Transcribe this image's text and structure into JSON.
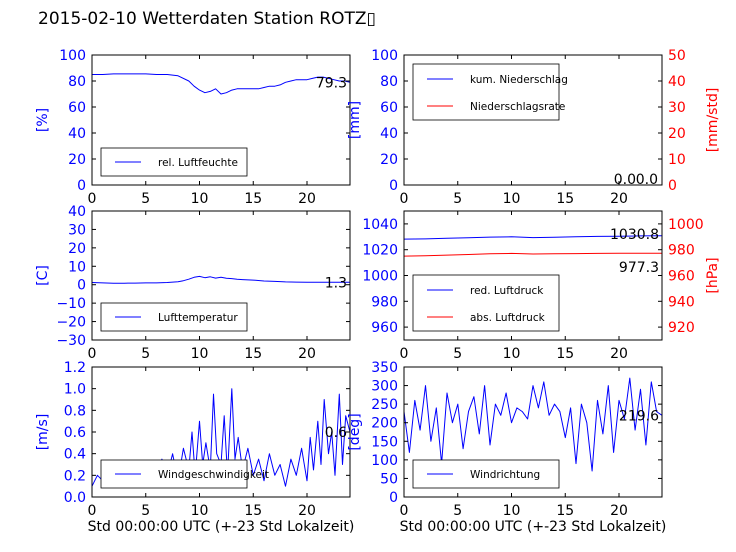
{
  "title": "2015-02-10 Wetterdaten Station ROTZ",
  "title_glyph": "▯",
  "colors": {
    "axis_left": "#0000ff",
    "axis_right": "#ff0000",
    "series_blue": "#0000ff",
    "series_red": "#ff0000",
    "text": "#000000"
  },
  "chart_data": [
    {
      "id": "humidity",
      "type": "line",
      "xlim": [
        0,
        24
      ],
      "x_ticks": [
        "0",
        "5",
        "10",
        "15",
        "20"
      ],
      "ylim": [
        0,
        100
      ],
      "y_ticks": [
        "0",
        "20",
        "40",
        "60",
        "80",
        "100"
      ],
      "ylabel": "[%]",
      "legend_position": "lower-left",
      "current_value": "79.3",
      "series": [
        {
          "name": "rel. Luftfeuchte",
          "color": "#0000ff",
          "axis": "left",
          "x": [
            0,
            1,
            2,
            3,
            4,
            5,
            6,
            7,
            8,
            9,
            9.5,
            10,
            10.5,
            11,
            11.5,
            12,
            12.5,
            13,
            13.5,
            14,
            14.5,
            15,
            15.5,
            16,
            16.5,
            17,
            17.5,
            18,
            18.5,
            19,
            19.5,
            20,
            20.5,
            21,
            21.5,
            22,
            22.5,
            23,
            23.5,
            24
          ],
          "y": [
            85,
            85,
            85.5,
            85.5,
            85.5,
            85.5,
            85,
            85,
            84,
            80,
            76,
            73,
            71,
            72,
            74,
            70,
            71,
            73,
            74,
            74,
            74,
            74,
            74,
            75,
            76,
            76,
            77,
            79,
            80,
            81,
            81,
            81,
            82,
            83,
            83,
            82,
            81,
            80,
            80,
            79
          ]
        }
      ]
    },
    {
      "id": "precipitation",
      "type": "line",
      "xlim": [
        0,
        24
      ],
      "x_ticks": [
        "0",
        "5",
        "10",
        "15",
        "20"
      ],
      "ylim": [
        0,
        100
      ],
      "y_ticks": [
        "0",
        "20",
        "40",
        "60",
        "80",
        "100"
      ],
      "ylabel": "[mm]",
      "y2lim": [
        0,
        50
      ],
      "y2_ticks": [
        "0",
        "10",
        "20",
        "30",
        "40",
        "50"
      ],
      "y2label": "[mm/std]",
      "legend_position": "upper-left",
      "current_values": [
        "0.0",
        "0.0"
      ],
      "series": [
        {
          "name": "kum. Niederschlag",
          "color": "#0000ff",
          "axis": "left",
          "x": [
            0,
            24
          ],
          "y": [
            0,
            0
          ]
        },
        {
          "name": "Niederschlagsrate",
          "color": "#ff0000",
          "axis": "right",
          "x": [
            0,
            24
          ],
          "y": [
            0,
            0
          ]
        }
      ]
    },
    {
      "id": "temperature",
      "type": "line",
      "xlim": [
        0,
        24
      ],
      "x_ticks": [
        "0",
        "5",
        "10",
        "15",
        "20"
      ],
      "ylim": [
        -30,
        40
      ],
      "y_ticks": [
        "−30",
        "−20",
        "−10",
        "0",
        "10",
        "20",
        "30",
        "40"
      ],
      "ylabel": "[C]",
      "legend_position": "lower-left",
      "current_value": "1.3",
      "series": [
        {
          "name": "Lufttemperatur",
          "color": "#0000ff",
          "axis": "left",
          "x": [
            0,
            1,
            2,
            3,
            4,
            5,
            6,
            7,
            8,
            8.5,
            9,
            9.5,
            10,
            10.5,
            11,
            11.5,
            12,
            12.5,
            13,
            13.5,
            14,
            14.5,
            15,
            16,
            17,
            18,
            19,
            20,
            21,
            22,
            23,
            24
          ],
          "y": [
            1.2,
            1.0,
            0.8,
            0.8,
            0.9,
            1.0,
            1.0,
            1.2,
            1.6,
            2.2,
            3.0,
            4.0,
            4.5,
            3.8,
            4.3,
            3.6,
            4.0,
            3.5,
            3.3,
            3.0,
            2.8,
            2.6,
            2.5,
            2.0,
            1.8,
            1.5,
            1.4,
            1.3,
            1.3,
            1.3,
            1.3,
            1.3
          ]
        }
      ]
    },
    {
      "id": "pressure",
      "type": "line",
      "xlim": [
        0,
        24
      ],
      "x_ticks": [
        "0",
        "5",
        "10",
        "15",
        "20"
      ],
      "ylim": [
        950,
        1050
      ],
      "y_ticks": [
        "960",
        "980",
        "1000",
        "1020",
        "1040"
      ],
      "y2lim": [
        910,
        1010
      ],
      "y2_ticks": [
        "920",
        "940",
        "960",
        "980",
        "1000"
      ],
      "y2label": "[hPa]",
      "legend_position": "lower-left",
      "current_values": [
        "1030.8",
        "977.3"
      ],
      "series": [
        {
          "name": "red. Luftdruck",
          "color": "#0000ff",
          "axis": "left",
          "x": [
            0,
            2,
            4,
            6,
            8,
            10,
            12,
            14,
            16,
            18,
            20,
            22,
            24
          ],
          "y": [
            1028.2,
            1028.4,
            1028.8,
            1029.3,
            1029.8,
            1030.0,
            1029.4,
            1029.7,
            1030.0,
            1030.3,
            1030.5,
            1030.7,
            1030.8
          ]
        },
        {
          "name": "abs. Luftdruck",
          "color": "#ff0000",
          "axis": "right",
          "x": [
            0,
            2,
            4,
            6,
            8,
            10,
            12,
            14,
            16,
            18,
            20,
            22,
            24
          ],
          "y": [
            975.0,
            975.3,
            975.8,
            976.3,
            976.8,
            977.1,
            976.7,
            976.8,
            977.0,
            977.1,
            977.2,
            977.3,
            977.3
          ]
        }
      ]
    },
    {
      "id": "windspeed",
      "type": "line",
      "xlim": [
        0,
        24
      ],
      "x_ticks": [
        "0",
        "5",
        "10",
        "15",
        "20"
      ],
      "ylim": [
        0,
        1.2
      ],
      "y_ticks": [
        "0.0",
        "0.2",
        "0.4",
        "0.6",
        "0.8",
        "1.0",
        "1.2"
      ],
      "ylabel": "[m/s]",
      "xlabel": "Std 00:00:00 UTC (+-23 Std Lokalzeit)",
      "legend_position": "lower-left",
      "current_value": "0.6",
      "series": [
        {
          "name": "Windgeschwindigkeit",
          "color": "#0000ff",
          "axis": "left",
          "x": [
            0,
            0.5,
            1,
            1.5,
            2,
            2.5,
            3,
            3.5,
            4,
            4.5,
            5,
            5.5,
            6,
            6.5,
            7,
            7.5,
            8,
            8.5,
            9,
            9.3,
            9.6,
            10,
            10.3,
            10.6,
            11,
            11.3,
            11.6,
            12,
            12.3,
            12.6,
            13,
            13.3,
            13.6,
            14,
            14.5,
            15,
            15.5,
            16,
            16.5,
            17,
            17.5,
            18,
            18.5,
            19,
            19.5,
            20,
            20.3,
            20.6,
            21,
            21.3,
            21.6,
            22,
            22.3,
            22.6,
            23,
            23.3,
            23.6,
            24
          ],
          "y": [
            0.1,
            0.2,
            0.15,
            0.25,
            0.12,
            0.3,
            0.15,
            0.28,
            0.1,
            0.3,
            0.18,
            0.32,
            0.12,
            0.35,
            0.2,
            0.4,
            0.15,
            0.45,
            0.25,
            0.6,
            0.2,
            0.7,
            0.3,
            0.5,
            0.25,
            0.95,
            0.4,
            0.3,
            0.75,
            0.2,
            1.0,
            0.35,
            0.55,
            0.25,
            0.45,
            0.2,
            0.35,
            0.15,
            0.4,
            0.2,
            0.3,
            0.1,
            0.35,
            0.2,
            0.45,
            0.15,
            0.55,
            0.25,
            0.7,
            0.3,
            0.9,
            0.4,
            0.6,
            0.2,
            0.95,
            0.3,
            0.75,
            0.6
          ]
        }
      ]
    },
    {
      "id": "winddirection",
      "type": "line",
      "xlim": [
        0,
        24
      ],
      "x_ticks": [
        "0",
        "5",
        "10",
        "15",
        "20"
      ],
      "ylim": [
        0,
        350
      ],
      "y_ticks": [
        "0",
        "50",
        "100",
        "150",
        "200",
        "250",
        "300",
        "350"
      ],
      "ylabel": "[deg]",
      "xlabel": "Std 00:00:00 UTC (+-23 Std Lokalzeit)",
      "legend_position": "lower-left",
      "current_value": "219.6",
      "series": [
        {
          "name": "Windrichtung",
          "color": "#0000ff",
          "axis": "left",
          "x": [
            0,
            0.5,
            1,
            1.5,
            2,
            2.5,
            3,
            3.5,
            4,
            4.5,
            5,
            5.5,
            6,
            6.5,
            7,
            7.5,
            8,
            8.5,
            9,
            9.5,
            10,
            10.5,
            11,
            11.5,
            12,
            12.5,
            13,
            13.5,
            14,
            14.5,
            15,
            15.5,
            16,
            16.5,
            17,
            17.5,
            18,
            18.5,
            19,
            19.5,
            20,
            20.5,
            21,
            21.5,
            22,
            22.5,
            23,
            23.5,
            24
          ],
          "y": [
            230,
            120,
            260,
            180,
            300,
            150,
            240,
            90,
            280,
            200,
            250,
            130,
            230,
            270,
            170,
            300,
            140,
            250,
            220,
            280,
            200,
            240,
            230,
            210,
            300,
            240,
            310,
            220,
            250,
            230,
            160,
            240,
            90,
            250,
            200,
            70,
            260,
            170,
            300,
            120,
            260,
            210,
            320,
            180,
            290,
            140,
            310,
            230,
            220
          ]
        }
      ]
    }
  ]
}
